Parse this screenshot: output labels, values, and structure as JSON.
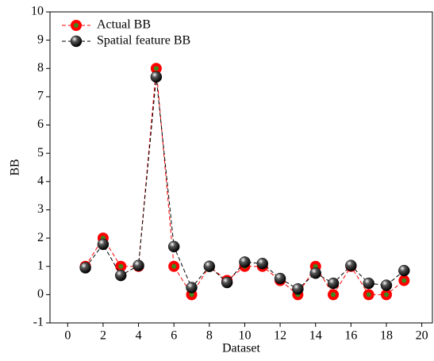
{
  "chart_data": {
    "type": "line",
    "x_label": "Dataset",
    "y_label": "BB",
    "x": [
      1,
      2,
      3,
      4,
      5,
      6,
      7,
      8,
      9,
      10,
      11,
      12,
      13,
      14,
      15,
      16,
      17,
      18,
      19
    ],
    "series": [
      {
        "name": "Actual BB",
        "color": "#ff0000",
        "marker_center": "#3a8a1e",
        "values": [
          1,
          2,
          1,
          1,
          8,
          1,
          0,
          1,
          0.5,
          1,
          1,
          0.5,
          0,
          1,
          0,
          1,
          0,
          0,
          0.5
        ]
      },
      {
        "name": "Spatial feature BB",
        "color": "#000000",
        "values": [
          0.95,
          1.78,
          0.68,
          1.03,
          7.7,
          1.7,
          0.25,
          1.0,
          0.43,
          1.15,
          1.1,
          0.57,
          0.2,
          0.76,
          0.4,
          1.03,
          0.4,
          0.33,
          0.85
        ]
      }
    ],
    "xlim": [
      -1,
      20.6
    ],
    "ylim": [
      -1,
      10
    ],
    "xticks": [
      0,
      2,
      4,
      6,
      8,
      10,
      12,
      14,
      16,
      18,
      20
    ],
    "yticks": [
      -1,
      0,
      1,
      2,
      3,
      4,
      5,
      6,
      7,
      8,
      9,
      10
    ],
    "legend": "upper left"
  }
}
